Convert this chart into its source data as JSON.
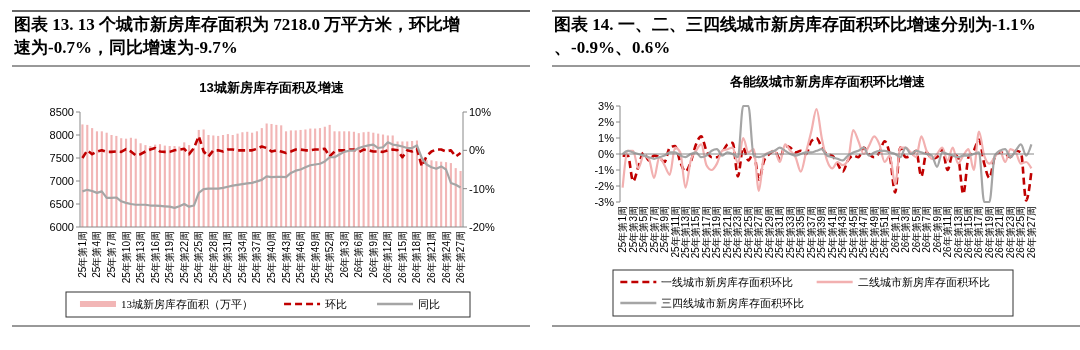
{
  "chart_data": [
    {
      "type": "bar",
      "title": "图表 13. 13 个城市新房库存面积为 7218.0 万平方米，环比增速为-0.7%，同比增速为-9.7%",
      "subtitle": "13城新房库存面积及增速",
      "categories": [
        "25年第1周",
        null,
        null,
        "25年第4周",
        null,
        null,
        "25年第7周",
        null,
        null,
        "25年第10周",
        null,
        null,
        "25年第13周",
        null,
        null,
        "25年第16周",
        null,
        null,
        "25年第19周",
        null,
        null,
        "25年第22周",
        null,
        null,
        "25年第25周",
        null,
        null,
        "25年第28周",
        null,
        null,
        "25年第31周",
        null,
        null,
        "25年第34周",
        null,
        null,
        "25年第37周",
        null,
        null,
        "25年第40周",
        null,
        null,
        "25年第43周",
        null,
        null,
        "25年第46周",
        null,
        null,
        "25年第49周",
        null,
        null,
        "25年第52周",
        null,
        null,
        "26年第3周",
        null,
        null,
        "26年第6周",
        null,
        null,
        "26年第9周",
        null,
        null,
        "26年第12周",
        null,
        null,
        "26年第15周",
        null,
        null,
        "26年第18周",
        null,
        null,
        "26年第21周",
        null,
        null,
        "26年第24周",
        null,
        null,
        "26年第27周"
      ],
      "series": [
        {
          "name": "13城新房库存面积（万平）",
          "color": "#f2b6b6",
          "values": [
            8230,
            8220,
            8150,
            8080,
            8080,
            8050,
            8000,
            7980,
            7930,
            7920,
            7940,
            7920,
            7820,
            7780,
            7760,
            7790,
            7800,
            7770,
            7760,
            7760,
            7750,
            7840,
            7780,
            7720,
            8110,
            8120,
            8000,
            7990,
            7980,
            8000,
            8020,
            8000,
            8030,
            8060,
            8070,
            8050,
            8080,
            8150,
            8250,
            8240,
            8220,
            8210,
            8080,
            8100,
            8100,
            8110,
            8120,
            8140,
            8140,
            8150,
            8180,
            8220,
            8080,
            8080,
            8080,
            8080,
            8070,
            8040,
            8060,
            8070,
            8050,
            8030,
            8010,
            7990,
            7990,
            7860,
            7860,
            7860,
            7870,
            7880,
            7460,
            7450,
            7450,
            7430,
            7420,
            7410,
            7390,
            7280,
            7218
          ]
        },
        {
          "name": "环比",
          "type": "line",
          "axis": "y2",
          "line_style": "dashed",
          "color": "#c00000",
          "values": [
            -2.0,
            0,
            -1.0,
            -0.3,
            0,
            -0.4,
            -0.4,
            -0.3,
            -0.4,
            0.3,
            -0.3,
            -1.3,
            -1.0,
            -0.3,
            0.2,
            0.6,
            -0.3,
            -0.4,
            -0.4,
            0,
            0.2,
            0.4,
            -1.0,
            0.6,
            3.7,
            -0.3,
            -1.6,
            0,
            0,
            -0.3,
            0.2,
            0.2,
            0,
            0,
            0,
            0,
            0.4,
            1.0,
            0.6,
            -0.3,
            0,
            -0.3,
            -0.7,
            -0.3,
            0.2,
            0.2,
            0,
            0,
            0.2,
            0.2,
            0.4,
            -1.6,
            -0.3,
            0,
            0,
            0.2,
            0.2,
            -0.5,
            0.2,
            0,
            -0.3,
            -0.3,
            -0.4,
            0,
            0.2,
            0,
            -1.8,
            0,
            -0.3,
            0.4,
            -4.2,
            -1.5,
            -0.3,
            0.2,
            0.2,
            -0.3,
            0,
            -1.6,
            -0.7
          ]
        },
        {
          "name": "同比",
          "type": "line",
          "axis": "y2",
          "line_style": "solid",
          "color": "#a5a5a5",
          "values": [
            -10.7,
            -10.3,
            -10.6,
            -11.1,
            -10.7,
            -12.4,
            -12.4,
            -12.3,
            -13.3,
            -13.7,
            -14.0,
            -14.2,
            -14.2,
            -14.2,
            -14.4,
            -14.4,
            -14.5,
            -14.6,
            -14.7,
            -15.0,
            -14.6,
            -14.0,
            -14.7,
            -14.4,
            -11.1,
            -10.1,
            -10.0,
            -10.0,
            -10.0,
            -9.8,
            -9.5,
            -9.2,
            -9.0,
            -8.8,
            -8.6,
            -8.5,
            -8.1,
            -7.7,
            -6.8,
            -7.0,
            -6.9,
            -6.9,
            -7.0,
            -5.9,
            -5.3,
            -5.0,
            -4.4,
            -3.9,
            -3.7,
            -3.5,
            -2.9,
            -1.8,
            -1.8,
            -1.1,
            -0.4,
            -0.1,
            -0.1,
            0.6,
            1.0,
            1.3,
            1.5,
            0.6,
            0.8,
            2.1,
            1.5,
            1.3,
            1.0,
            0.6,
            0.6,
            1.3,
            -2.0,
            -3.7,
            -4.4,
            -4.8,
            -4.2,
            -5.0,
            -8.5,
            -9.0,
            -9.7
          ]
        }
      ],
      "ylim": [
        6000,
        8500
      ],
      "yticks": [
        6000,
        6500,
        7000,
        7500,
        8000,
        8500
      ],
      "y2lim": [
        -20,
        10
      ],
      "y2ticks": [
        {
          "value": -20,
          "label": "-20%"
        },
        {
          "value": -10,
          "label": "-10%"
        },
        {
          "value": 0,
          "label": "0%"
        },
        {
          "value": 10,
          "label": "10%"
        }
      ],
      "legend": "bottom"
    },
    {
      "type": "line",
      "title": "图表 14. 一、二、三四线城市新房库存面积环比增速分别为-1.1%、-0.9%、0.6%",
      "subtitle": "各能级城市新房库存面积环比增速",
      "categories": [
        "25年第1周",
        null,
        "25年第3周",
        null,
        "25年第5周",
        null,
        "25年第7周",
        null,
        "25年第9周",
        null,
        "25年第11周",
        null,
        "25年第13周",
        null,
        "25年第15周",
        null,
        "25年第17周",
        null,
        "25年第19周",
        null,
        "25年第21周",
        null,
        "25年第23周",
        null,
        "25年第25周",
        null,
        "25年第27周",
        null,
        "25年第29周",
        null,
        "25年第31周",
        null,
        "25年第33周",
        null,
        "25年第35周",
        null,
        "25年第37周",
        null,
        "25年第39周",
        null,
        "25年第41周",
        null,
        "25年第43周",
        null,
        "25年第45周",
        null,
        "25年第47周",
        null,
        "25年第49周",
        null,
        "25年第51周",
        null,
        "26年第1周",
        null,
        "26年第3周",
        null,
        "26年第5周",
        null,
        "26年第7周",
        null,
        "26年第9周",
        null,
        "26年第11周",
        null,
        "26年第13周",
        null,
        "26年第15周",
        null,
        "26年第17周",
        null,
        "26年第19周",
        null,
        "26年第21周",
        null,
        "26年第23周",
        null,
        "26年第25周",
        null,
        "26年第27周"
      ],
      "series": [
        {
          "name": "一线城市新房库存面积环比",
          "line_style": "dashed",
          "color": "#c00000",
          "values": [
            -0.1,
            -0.1,
            -1.7,
            -0.8,
            0.1,
            -0.4,
            -0.1,
            -0.2,
            -0.5,
            0.4,
            0.5,
            -0.5,
            -1.1,
            -0.5,
            0.6,
            1.1,
            0.2,
            -0.2,
            -0.2,
            0.1,
            0.6,
            0.7,
            -1.4,
            0.4,
            -0.4,
            0.1,
            -1.6,
            -0.4,
            0,
            0.2,
            -0.3,
            0.5,
            0.4,
            0.1,
            0.2,
            0,
            0.8,
            1.0,
            0.4,
            0,
            -0.1,
            -0.6,
            -1.1,
            -0.4,
            -0.1,
            -0.2,
            0.4,
            0,
            -0.2,
            0.1,
            0.8,
            -0.1,
            -2.4,
            0.4,
            -0.2,
            -0.1,
            0.2,
            -1.4,
            0.1,
            -0.3,
            -0.2,
            0.3,
            -1.0,
            0,
            -0.2,
            -2.5,
            -0.2,
            0.2,
            0.9,
            -0.6,
            -1.5,
            -0.2,
            0.1,
            0,
            -0.2,
            0.2,
            0.1,
            -2.9,
            -1.1
          ]
        },
        {
          "name": "二线城市新房库存面积环比",
          "line_style": "solid",
          "color": "#f2b0b0",
          "values": [
            -2.1,
            0.2,
            0.2,
            -0.9,
            -0.1,
            -0.3,
            -1.5,
            -0.2,
            -0.7,
            -1.3,
            0.4,
            0.1,
            -2.1,
            -0.4,
            0.2,
            0.6,
            -0.7,
            -1.0,
            -0.6,
            0.2,
            0.3,
            0.4,
            -0.6,
            1.0,
            0.1,
            0.3,
            -2.3,
            -0.1,
            0.1,
            0.2,
            -0.5,
            0.6,
            0.2,
            -0.2,
            -1.1,
            0.1,
            1.4,
            2.8,
            1.0,
            -0.4,
            -0.9,
            -0.5,
            -0.7,
            -0.4,
            1.5,
            0.8,
            0,
            0.5,
            1.1,
            0.6,
            -0.5,
            -0.1,
            -1.9,
            0.4,
            0.4,
            0.1,
            -0.2,
            1.1,
            0.2,
            -0.3,
            0,
            0.4,
            -0.4,
            0.4,
            -0.6,
            -0.1,
            0.3,
            -1.0,
            1.4,
            -0.1,
            -0.6,
            -0.2,
            0.2,
            -0.5,
            0.3,
            0.1,
            -0.6,
            -0.5,
            -0.9
          ]
        },
        {
          "name": "三四线城市新房库存面积环比",
          "line_style": "solid",
          "color": "#a5a5a5",
          "values": [
            0,
            0.2,
            0.1,
            0,
            -0.1,
            -0.2,
            -0.3,
            -0.2,
            -0.1,
            0.1,
            0.1,
            -0.1,
            -0.2,
            0,
            0.1,
            -0.2,
            -0.1,
            0.2,
            0.3,
            -0.1,
            0.1,
            0,
            -0.2,
            3,
            3,
            -0.1,
            -0.2,
            -0.1,
            0.1,
            0.2,
            0.4,
            0.2,
            0,
            -0.1,
            0,
            0.1,
            0.1,
            0.2,
            0.3,
            -0.1,
            -0.2,
            -0.3,
            -0.4,
            -0.1,
            0.1,
            0.2,
            0.4,
            -0.1,
            0.1,
            0.2,
            0.2,
            0.1,
            0,
            -0.2,
            0.4,
            0,
            0.2,
            0.1,
            0,
            -0.1,
            -0.8,
            0.1,
            0,
            -0.1,
            -0.2,
            -0.1,
            -0.1,
            0,
            0.1,
            -3,
            -3,
            -0.1,
            0.2,
            0.3,
            -0.2,
            0.2,
            0.6,
            -0.1,
            0.6
          ]
        }
      ],
      "ylim": [
        -3,
        3
      ],
      "yticks": [
        {
          "value": -3,
          "label": "-3%"
        },
        {
          "value": -2,
          "label": "-2%"
        },
        {
          "value": -1,
          "label": "-1%"
        },
        {
          "value": 0,
          "label": "0%"
        },
        {
          "value": 1,
          "label": "1%"
        },
        {
          "value": 2,
          "label": "2%"
        },
        {
          "value": 3,
          "label": "3%"
        }
      ],
      "legend": "bottom"
    }
  ]
}
